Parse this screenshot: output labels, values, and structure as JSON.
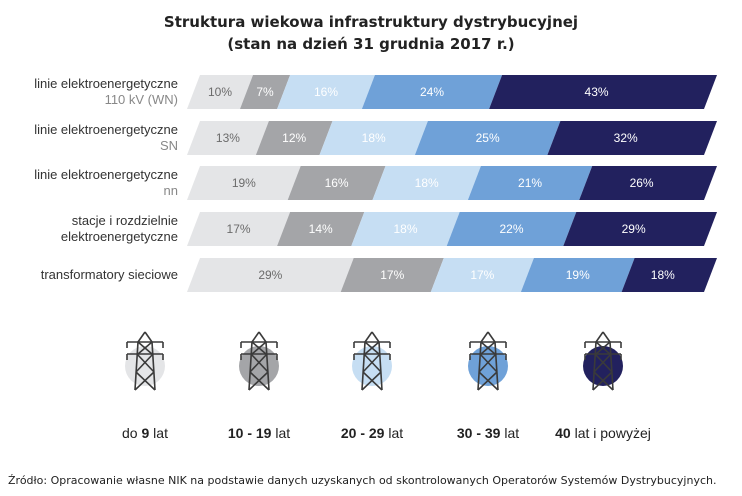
{
  "chart_data": {
    "type": "bar",
    "stacked": true,
    "orientation": "horizontal",
    "title": "Struktura wiekowa infrastruktury dystrybucyjnej",
    "subtitle": "(stan na dzień 31 grudnia 2017 r.)",
    "categories": [
      {
        "line1": "linie elektroenergetyczne",
        "line2": "110 kV (WN)"
      },
      {
        "line1": "linie elektroenergetyczne",
        "line2": "SN"
      },
      {
        "line1": "linie elektroenergetyczne",
        "line2": "nn"
      },
      {
        "line1": "stacje i rozdzielnie",
        "line2": "elektroenergetyczne"
      },
      {
        "line1": "transformatory sieciowe",
        "line2": ""
      }
    ],
    "series": [
      {
        "name": "do 9 lat",
        "color": "#e4e5e7",
        "text_color": "#6b6b6b",
        "values": [
          10,
          13,
          19,
          17,
          29
        ]
      },
      {
        "name": "10 - 19 lat",
        "color": "#a4a5a8",
        "text_color": "#ffffff",
        "values": [
          7,
          12,
          16,
          14,
          17
        ]
      },
      {
        "name": "20 - 29 lat",
        "color": "#c6def3",
        "text_color": "#ffffff",
        "values": [
          16,
          18,
          18,
          18,
          17
        ]
      },
      {
        "name": "30 - 39 lat",
        "color": "#6fa1d8",
        "text_color": "#ffffff",
        "values": [
          24,
          25,
          21,
          22,
          19
        ]
      },
      {
        "name": "40 lat i powyżej",
        "color": "#22215e",
        "text_color": "#ffffff",
        "values": [
          43,
          32,
          26,
          29,
          18
        ]
      }
    ],
    "value_suffix": "%",
    "legend": [
      {
        "bold": "",
        "rest": "do ",
        "num": "9",
        "tail": " lat"
      },
      {
        "bold": "10 - 19",
        "rest": "",
        "num": "",
        "tail": " lat"
      },
      {
        "bold": "20 - 29",
        "rest": "",
        "num": "",
        "tail": " lat"
      },
      {
        "bold": "30 - 39",
        "rest": "",
        "num": "",
        "tail": " lat"
      },
      {
        "bold": "40",
        "rest": "",
        "num": "",
        "tail": " lat i powyżej"
      }
    ],
    "legend_placement": "bottom"
  },
  "source": "Źródło: Opracowanie własne NIK na podstawie danych uzyskanych od skontrolowanych Operatorów Systemów Dystrybucyjnych."
}
